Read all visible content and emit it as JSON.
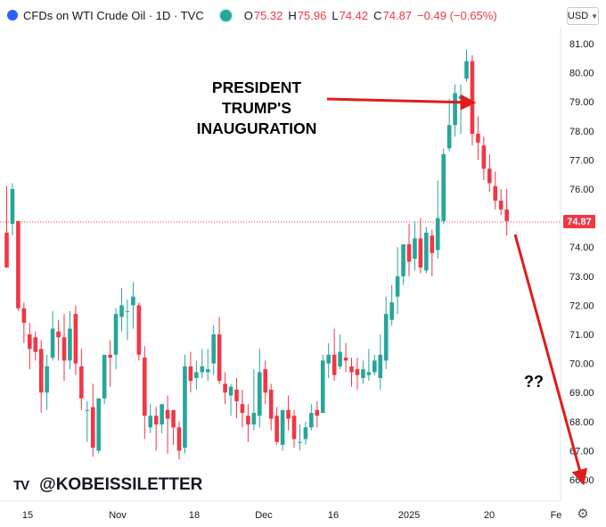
{
  "header": {
    "symbol": "CFDs on WTI Crude Oil · 1D · TVC",
    "open_label": "O",
    "open_value": "75.32",
    "high_label": "H",
    "high_value": "75.96",
    "low_label": "L",
    "low_value": "74.42",
    "close_label": "C",
    "close_value": "74.87",
    "change": "−0.49 (−0.65%)"
  },
  "currency": {
    "label": "USD",
    "icon": "chevron-down-icon"
  },
  "settings": {
    "icon": "gear-icon"
  },
  "brand": {
    "logo": "TV",
    "handle": "@KOBEISSILETTER"
  },
  "annotations": {
    "inauguration": "PRESIDENT TRUMP'S INAUGURATION",
    "question": "??"
  },
  "colors": {
    "up": "#26a69a",
    "down": "#f23645",
    "arrow": "#e11b1b",
    "price_line": "#f23645"
  },
  "chart_data": {
    "type": "candlestick",
    "y_axis_ticks": [
      "81.00",
      "80.00",
      "79.00",
      "78.00",
      "77.00",
      "76.00",
      "75.00",
      "74.00",
      "73.00",
      "72.00",
      "71.00",
      "70.00",
      "69.00",
      "68.00",
      "67.00",
      "66.00"
    ],
    "ylim": [
      65.7,
      81.5
    ],
    "x_tick_labels": [
      "15",
      "Nov",
      "18",
      "Dec",
      "16",
      "2025",
      "20",
      "Fe"
    ],
    "last_price": "74.87",
    "candles": [
      [
        74.5,
        73.3,
        76.1,
        73.3
      ],
      [
        74.8,
        76.0,
        76.2,
        74.4
      ],
      [
        74.9,
        71.9,
        74.9,
        71.8
      ],
      [
        71.9,
        71.4,
        72.1,
        70.7
      ],
      [
        71.0,
        70.5,
        71.4,
        69.8
      ],
      [
        70.9,
        70.4,
        71.1,
        70.1
      ],
      [
        70.5,
        69.0,
        70.8,
        68.3
      ],
      [
        69.0,
        69.9,
        70.3,
        68.4
      ],
      [
        70.2,
        71.2,
        71.8,
        70.1
      ],
      [
        71.1,
        70.9,
        71.5,
        70.1
      ],
      [
        70.9,
        70.1,
        71.7,
        69.4
      ],
      [
        70.1,
        71.2,
        71.8,
        69.8
      ],
      [
        71.7,
        70.0,
        72.0,
        69.6
      ],
      [
        69.9,
        68.8,
        70.5,
        68.4
      ],
      [
        68.4,
        68.4,
        68.7,
        67.3
      ],
      [
        68.5,
        67.1,
        69.3,
        66.8
      ],
      [
        67.0,
        68.8,
        68.8,
        66.9
      ],
      [
        68.8,
        70.3,
        70.3,
        68.6
      ],
      [
        70.3,
        70.2,
        70.8,
        69.2
      ],
      [
        70.3,
        71.7,
        71.9,
        69.8
      ],
      [
        71.6,
        72.0,
        72.6,
        71.1
      ],
      [
        71.8,
        71.8,
        72.2,
        70.8
      ],
      [
        72.0,
        72.3,
        72.8,
        71.2
      ],
      [
        72.0,
        70.3,
        72.1,
        70.1
      ],
      [
        70.2,
        68.2,
        70.6,
        67.4
      ],
      [
        67.8,
        68.2,
        68.6,
        67.6
      ],
      [
        68.2,
        67.9,
        68.5,
        67.0
      ],
      [
        67.9,
        68.6,
        68.6,
        67.6
      ],
      [
        68.4,
        68.1,
        68.9,
        66.9
      ],
      [
        68.4,
        67.8,
        68.3,
        67.2
      ],
      [
        67.8,
        67.0,
        68.0,
        66.7
      ],
      [
        67.1,
        69.9,
        70.3,
        66.9
      ],
      [
        69.9,
        69.4,
        70.4,
        69.0
      ],
      [
        69.5,
        69.7,
        70.1,
        69.1
      ],
      [
        69.7,
        69.9,
        70.5,
        69.5
      ],
      [
        69.7,
        69.8,
        70.5,
        69.4
      ],
      [
        70.0,
        71.0,
        71.3,
        69.6
      ],
      [
        71.0,
        69.4,
        71.6,
        69.3
      ],
      [
        69.3,
        69.0,
        69.7,
        68.6
      ],
      [
        68.9,
        69.2,
        69.3,
        68.2
      ],
      [
        69.1,
        68.7,
        69.5,
        68.1
      ],
      [
        68.6,
        68.3,
        69.1,
        67.8
      ],
      [
        68.2,
        67.9,
        68.6,
        67.3
      ],
      [
        67.9,
        68.3,
        69.8,
        67.7
      ],
      [
        68.2,
        69.7,
        70.5,
        67.8
      ],
      [
        69.8,
        69.0,
        70.1,
        68.6
      ],
      [
        69.1,
        68.1,
        69.3,
        67.7
      ],
      [
        68.2,
        67.3,
        68.5,
        67.2
      ],
      [
        67.2,
        68.4,
        68.4,
        67.0
      ],
      [
        68.4,
        68.1,
        68.9,
        67.7
      ],
      [
        68.2,
        67.4,
        68.4,
        67.1
      ],
      [
        67.3,
        67.3,
        67.9,
        67.0
      ],
      [
        67.4,
        67.8,
        68.0,
        67.2
      ],
      [
        67.8,
        68.3,
        68.6,
        67.7
      ],
      [
        68.4,
        68.2,
        68.7,
        67.8
      ],
      [
        68.3,
        70.1,
        70.3,
        68.3
      ],
      [
        70.0,
        70.3,
        70.7,
        69.5
      ],
      [
        70.3,
        69.6,
        71.2,
        69.4
      ],
      [
        69.9,
        70.4,
        71.0,
        69.8
      ],
      [
        70.2,
        70.1,
        70.7,
        69.7
      ],
      [
        69.9,
        69.7,
        70.2,
        69.2
      ],
      [
        69.8,
        69.6,
        70.2,
        69.1
      ],
      [
        69.5,
        69.8,
        70.1,
        69.3
      ],
      [
        69.6,
        69.7,
        70.5,
        69.4
      ],
      [
        69.7,
        70.1,
        70.3,
        69.6
      ],
      [
        69.5,
        70.3,
        71.0,
        69.1
      ],
      [
        70.1,
        71.7,
        72.3,
        69.8
      ],
      [
        71.5,
        72.1,
        72.7,
        71.3
      ],
      [
        72.3,
        73.0,
        74.0,
        71.7
      ],
      [
        73.0,
        74.1,
        74.1,
        72.7
      ],
      [
        74.1,
        73.5,
        74.8,
        73.0
      ],
      [
        73.6,
        74.3,
        74.9,
        73.2
      ],
      [
        74.3,
        73.3,
        75.0,
        73.1
      ],
      [
        73.2,
        74.5,
        74.7,
        73.1
      ],
      [
        74.4,
        73.8,
        74.6,
        73.0
      ],
      [
        73.9,
        75.0,
        76.3,
        73.6
      ],
      [
        74.9,
        77.2,
        77.4,
        74.8
      ],
      [
        77.4,
        78.2,
        79.1,
        77.3
      ],
      [
        78.2,
        79.3,
        79.6,
        77.8
      ],
      [
        79.1,
        79.2,
        79.6,
        77.9
      ],
      [
        79.8,
        80.4,
        80.8,
        79.7
      ],
      [
        80.4,
        77.9,
        80.6,
        77.5
      ],
      [
        77.9,
        77.6,
        78.5,
        77.0
      ],
      [
        77.5,
        76.7,
        77.8,
        76.3
      ],
      [
        76.7,
        76.2,
        77.2,
        75.9
      ],
      [
        76.1,
        75.6,
        76.6,
        75.3
      ],
      [
        75.6,
        75.3,
        76.0,
        75.1
      ],
      [
        75.3,
        74.9,
        76.0,
        74.4
      ]
    ]
  }
}
